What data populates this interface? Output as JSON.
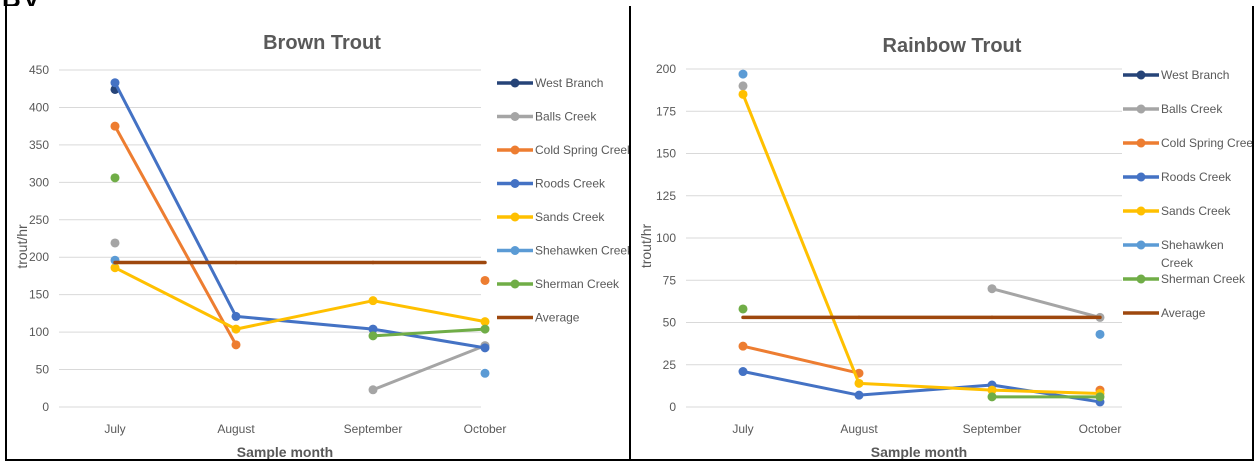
{
  "header_fragment": [
    "B",
    "y"
  ],
  "chart_data": [
    {
      "type": "line",
      "title": "Brown Trout",
      "xlabel": "Sample month",
      "ylabel": "trout/hr",
      "categories": [
        "July",
        "August",
        "September",
        "October"
      ],
      "ylim": [
        0,
        450
      ],
      "yticks": [
        0,
        50,
        100,
        150,
        200,
        250,
        300,
        350,
        400,
        450
      ],
      "legend_position": "right",
      "series": [
        {
          "name": "West Branch",
          "color": "#264478",
          "values": [
            424,
            null,
            null,
            null
          ]
        },
        {
          "name": "Balls Creek",
          "color": "#A5A5A5",
          "values": [
            219,
            null,
            23,
            82
          ]
        },
        {
          "name": "Cold Spring Creek",
          "color": "#ED7D31",
          "values": [
            375,
            83,
            null,
            169
          ]
        },
        {
          "name": "Roods Creek",
          "color": "#4472C4",
          "values": [
            433,
            121,
            104,
            79
          ]
        },
        {
          "name": "Sands Creek",
          "color": "#FFC000",
          "values": [
            186,
            104,
            142,
            114
          ]
        },
        {
          "name": "Shehawken Creek",
          "color": "#5B9BD5",
          "values": [
            196,
            null,
            null,
            45
          ]
        },
        {
          "name": "Sherman Creek",
          "color": "#70AD47",
          "values": [
            306,
            null,
            95,
            104
          ]
        },
        {
          "name": "Average",
          "color": "#9E480E",
          "values": [
            193,
            193,
            193,
            193
          ],
          "markers": false
        }
      ]
    },
    {
      "type": "line",
      "title": "Rainbow Trout",
      "xlabel": "Sample month",
      "ylabel": "trout/hr",
      "categories": [
        "July",
        "August",
        "September",
        "October"
      ],
      "ylim": [
        0,
        200
      ],
      "yticks": [
        0,
        25,
        50,
        75,
        100,
        125,
        150,
        175,
        200
      ],
      "legend_position": "right",
      "series": [
        {
          "name": "West Branch",
          "color": "#264478",
          "values": [
            null,
            null,
            null,
            null
          ]
        },
        {
          "name": "Balls Creek",
          "color": "#A5A5A5",
          "values": [
            190,
            null,
            70,
            53
          ]
        },
        {
          "name": "Cold Spring Creek",
          "color": "#ED7D31",
          "values": [
            36,
            20,
            null,
            10
          ]
        },
        {
          "name": "Roods Creek",
          "color": "#4472C4",
          "values": [
            21,
            7,
            13,
            3
          ]
        },
        {
          "name": "Sands Creek",
          "color": "#FFC000",
          "values": [
            185,
            14,
            10,
            8
          ]
        },
        {
          "name": "Shehawken Creek",
          "color": "#5B9BD5",
          "values": [
            197,
            null,
            null,
            43
          ]
        },
        {
          "name": "Sherman Creek",
          "color": "#70AD47",
          "values": [
            58,
            null,
            6,
            6
          ]
        },
        {
          "name": "Average",
          "color": "#9E480E",
          "values": [
            53,
            53,
            53,
            53
          ],
          "markers": false
        }
      ]
    }
  ]
}
